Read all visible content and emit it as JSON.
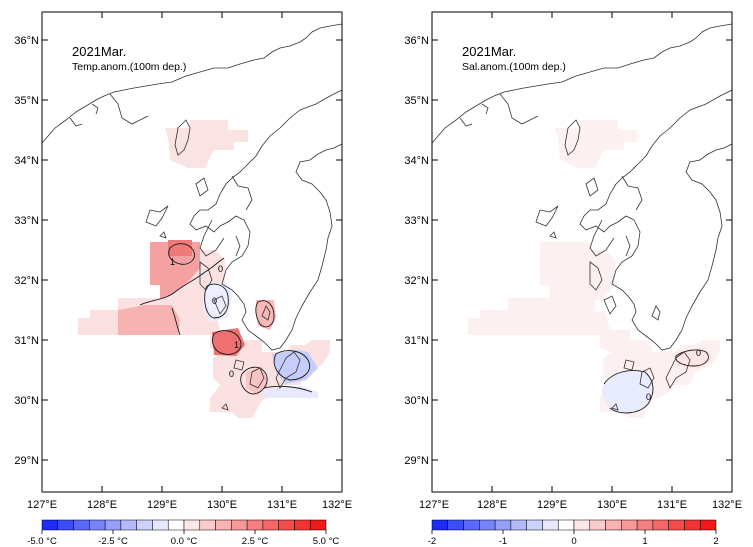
{
  "panels": [
    {
      "title": "2021Mar.",
      "subtitle": "Temp.anom.(100m dep.)",
      "lat_labels": [
        "36°N",
        "35°N",
        "34°N",
        "33°N",
        "32°N",
        "31°N",
        "30°N",
        "29°N"
      ],
      "lon_labels": [
        "127°E",
        "128°E",
        "129°E",
        "130°E",
        "131°E",
        "132°E"
      ],
      "contour_labels": [
        "1",
        "0",
        "0",
        "1",
        "0"
      ],
      "colorbar": {
        "labels": [
          "-5.0 °C",
          "-2.5 °C",
          "0.0 °C",
          "2.5 °C",
          "5.0 °C"
        ],
        "colors": [
          "#1f2cf5",
          "#3c4cf6",
          "#5a69f7",
          "#7885f8",
          "#95a0fa",
          "#b2bafb",
          "#ccd2fc",
          "#e6e9fe",
          "#ffffff",
          "#fde6e6",
          "#fccccc",
          "#fab3b3",
          "#f89999",
          "#f77f7f",
          "#f56666",
          "#f44c4c",
          "#f23333",
          "#f11919"
        ]
      }
    },
    {
      "title": "2021Mar.",
      "subtitle": "Sal.anom.(100m dep.)",
      "lat_labels": [
        "36°N",
        "35°N",
        "34°N",
        "33°N",
        "32°N",
        "31°N",
        "30°N",
        "29°N"
      ],
      "lon_labels": [
        "127°E",
        "128°E",
        "129°E",
        "130°E",
        "131°E",
        "132°E"
      ],
      "contour_labels": [
        "0",
        "0"
      ],
      "colorbar": {
        "labels": [
          "-2",
          "-1",
          "0",
          "1",
          "2"
        ],
        "colors": [
          "#1f2cf5",
          "#3c4cf6",
          "#5a69f7",
          "#7885f8",
          "#95a0fa",
          "#b2bafb",
          "#ccd2fc",
          "#e6e9fe",
          "#ffffff",
          "#fde6e6",
          "#fccccc",
          "#fab3b3",
          "#f89999",
          "#f77f7f",
          "#f56666",
          "#f44c4c",
          "#f23333",
          "#f11919"
        ]
      }
    }
  ]
}
